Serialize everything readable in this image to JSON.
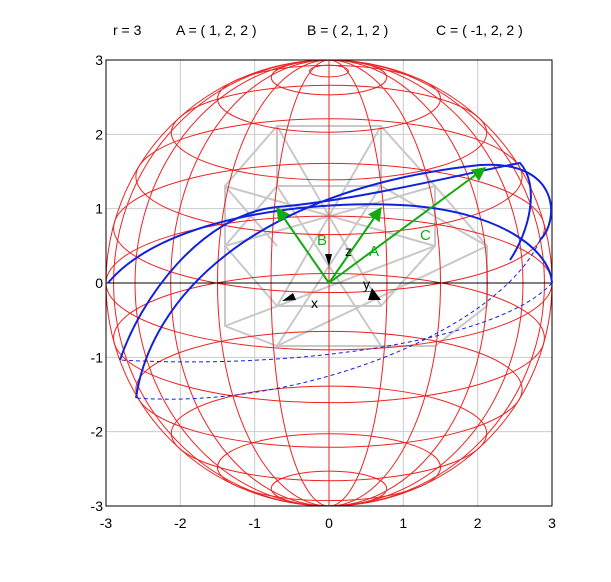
{
  "header": {
    "radius": "r = 3",
    "point_a": "A = ( 1, 2, 2 )",
    "point_b": "B = ( 2, 1, 2 )",
    "point_c": "C = ( -1, 2, 2 )"
  },
  "axes": {
    "x_ticks": [
      "-3",
      "-2",
      "-1",
      "0",
      "1",
      "2",
      "3"
    ],
    "y_ticks": [
      "3",
      "2",
      "1",
      "0",
      "-1",
      "-2",
      "-3"
    ],
    "xlim": [
      -3,
      3
    ],
    "ylim": [
      -3,
      3
    ],
    "grid": true
  },
  "labels": {
    "vec_a": "A",
    "vec_b": "B",
    "vec_c": "C",
    "axis_x": "x",
    "axis_y": "y",
    "axis_z": "z"
  },
  "colors": {
    "sphere": "#ee2222",
    "great_circle": "#1122dd",
    "vectors": "#11aa11",
    "cube": "#c8c8c8",
    "grid": "#cccccc",
    "axes": "#000000"
  }
}
